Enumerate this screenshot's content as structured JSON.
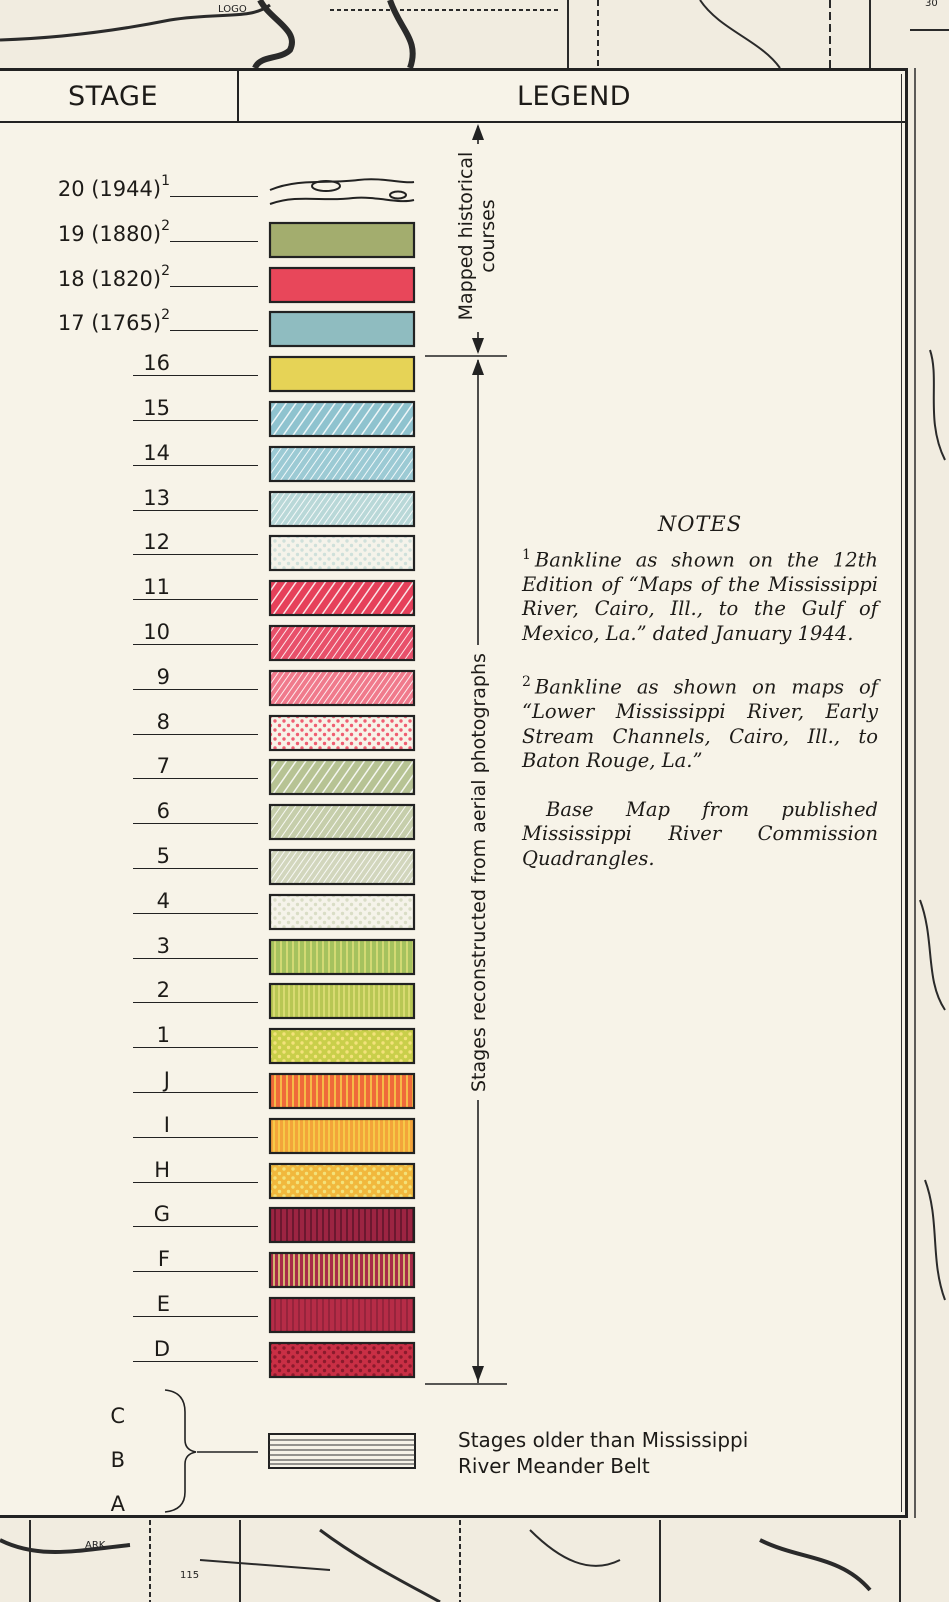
{
  "header": {
    "stage": "STAGE",
    "legend": "LEGEND"
  },
  "stages": [
    {
      "label": "20 (1944)",
      "note": "1",
      "pattern": "course-outline"
    },
    {
      "label": "19 (1880)",
      "note": "2",
      "pattern": "solid",
      "color": "#a3ad6e"
    },
    {
      "label": "18 (1820)",
      "note": "2",
      "pattern": "solid",
      "color": "#e8475a"
    },
    {
      "label": "17 (1765)",
      "note": "2",
      "pattern": "solid",
      "color": "#8fbcc0"
    },
    {
      "label": "16",
      "pattern": "solid",
      "color": "#e6d356"
    },
    {
      "label": "15",
      "pattern": "diagonal",
      "color": "#8fc3cf"
    },
    {
      "label": "14",
      "pattern": "diagonal-fine",
      "color": "#9ccad4"
    },
    {
      "label": "13",
      "pattern": "diagonal-light",
      "color": "#b9d8d8"
    },
    {
      "label": "12",
      "pattern": "dots-light",
      "color": "#cfe0da"
    },
    {
      "label": "11",
      "pattern": "diagonal",
      "color": "#e6405a"
    },
    {
      "label": "10",
      "pattern": "diagonal-fine",
      "color": "#e8506a"
    },
    {
      "label": "9",
      "pattern": "diagonal-light",
      "color": "#f07a8c"
    },
    {
      "label": "8",
      "pattern": "dots",
      "color": "#ef5f72"
    },
    {
      "label": "7",
      "pattern": "diagonal",
      "color": "#b7c394"
    },
    {
      "label": "6",
      "pattern": "diagonal-fine",
      "color": "#c6ceab"
    },
    {
      "label": "5",
      "pattern": "diagonal-light",
      "color": "#d2d6bd"
    },
    {
      "label": "4",
      "pattern": "dots-light",
      "color": "#d9ddc6"
    },
    {
      "label": "3",
      "pattern": "vertical",
      "color": "#a5c25e"
    },
    {
      "label": "2",
      "pattern": "vertical-fine",
      "color": "#b8c754"
    },
    {
      "label": "1",
      "pattern": "dots",
      "color": "#c9cf4a"
    },
    {
      "label": "J",
      "pattern": "vertical",
      "color": "#ef6a3a"
    },
    {
      "label": "I",
      "pattern": "vertical-fine",
      "color": "#f3a43a"
    },
    {
      "label": "H",
      "pattern": "dots",
      "color": "#f1b83d"
    },
    {
      "label": "G",
      "pattern": "vertical",
      "color": "#9c2442"
    },
    {
      "label": "F",
      "pattern": "vertical-fine",
      "color": "#a82a48"
    },
    {
      "label": "E",
      "pattern": "vertical-faint",
      "color": "#b62c47"
    },
    {
      "label": "D",
      "pattern": "dots",
      "color": "#c92f45"
    }
  ],
  "older_stages": [
    "C",
    "B",
    "A"
  ],
  "older_text_line1": "Stages older than Mississippi",
  "older_text_line2": "River Meander Belt",
  "bracket_mapped": "Mapped historical courses",
  "bracket_mapped_line1": "Mapped historical",
  "bracket_mapped_line2": "courses",
  "bracket_reconstructed": "Stages reconstructed from aerial photographs",
  "notes": {
    "title": "NOTES",
    "note1_marker": "1",
    "note1": "Bankline as shown on the 12th Edition of “Maps of the Mississippi River, Cairo, Ill., to the Gulf of Mexico, La.” dated January 1944.",
    "note2_marker": "2",
    "note2": "Bankline as shown on maps of “Lower Mississippi River, Early Stream Channels, Cairo, Ill., to Baton Rouge, La.”",
    "note3": "Base Map from published Mississippi River Commission Quadrangles."
  },
  "map_text": {
    "top_label": "LOGO",
    "bottom_label": "ARK",
    "corner_number": "30",
    "bottom_number": "115"
  }
}
